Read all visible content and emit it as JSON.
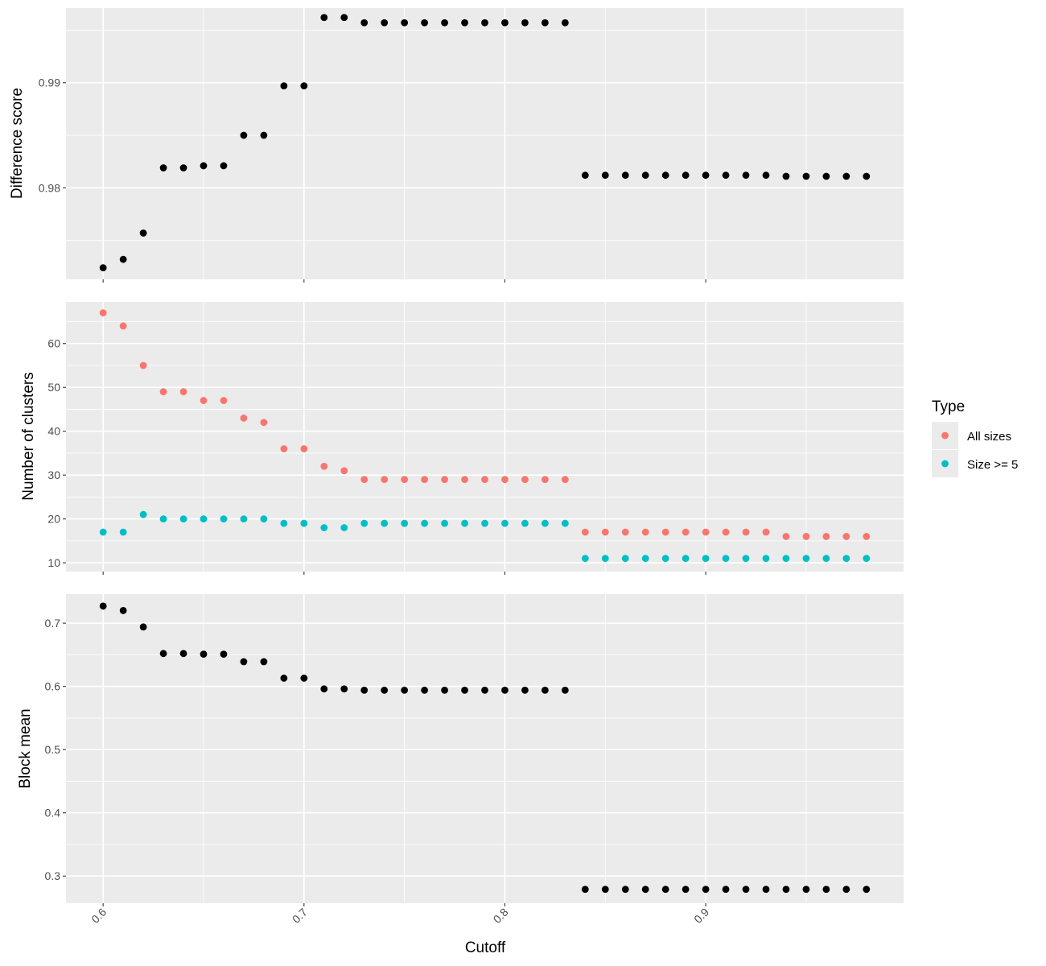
{
  "chart_data": [
    {
      "type": "scatter",
      "ylabel": "Difference score",
      "yticks": [
        0.98,
        0.99
      ],
      "ylim": [
        0.9713,
        0.9971
      ],
      "series": [
        {
          "color": "#000000",
          "x": [
            0.6,
            0.61,
            0.62,
            0.63,
            0.64,
            0.65,
            0.66,
            0.67,
            0.68,
            0.69,
            0.7,
            0.71,
            0.72,
            0.73,
            0.74,
            0.75,
            0.76,
            0.77,
            0.78,
            0.79,
            0.8,
            0.81,
            0.82,
            0.83,
            0.84,
            0.85,
            0.86,
            0.87,
            0.88,
            0.89,
            0.9,
            0.91,
            0.92,
            0.93,
            0.94,
            0.95,
            0.96,
            0.97,
            0.98
          ],
          "y": [
            0.9724,
            0.9732,
            0.9757,
            0.9819,
            0.9819,
            0.9821,
            0.9821,
            0.985,
            0.985,
            0.9897,
            0.9897,
            0.9962,
            0.9962,
            0.9957,
            0.9957,
            0.9957,
            0.9957,
            0.9957,
            0.9957,
            0.9957,
            0.9957,
            0.9957,
            0.9957,
            0.9957,
            0.9812,
            0.9812,
            0.9812,
            0.9812,
            0.9812,
            0.9812,
            0.9812,
            0.9812,
            0.9812,
            0.9812,
            0.9811,
            0.9811,
            0.9811,
            0.9811,
            0.9811
          ]
        }
      ]
    },
    {
      "type": "scatter",
      "ylabel": "Number of clusters",
      "yticks": [
        10,
        20,
        30,
        40,
        50,
        60
      ],
      "ylim": [
        8,
        69.5
      ],
      "legend": {
        "title": "Type",
        "placement": "right",
        "entries": [
          {
            "label": "All sizes",
            "color": "#F8766D"
          },
          {
            "label": "Size >= 5",
            "color": "#00BFC4"
          }
        ]
      },
      "series": [
        {
          "name": "All sizes",
          "color": "#F8766D",
          "x": [
            0.6,
            0.61,
            0.62,
            0.63,
            0.64,
            0.65,
            0.66,
            0.67,
            0.68,
            0.69,
            0.7,
            0.71,
            0.72,
            0.73,
            0.74,
            0.75,
            0.76,
            0.77,
            0.78,
            0.79,
            0.8,
            0.81,
            0.82,
            0.83,
            0.84,
            0.85,
            0.86,
            0.87,
            0.88,
            0.89,
            0.9,
            0.91,
            0.92,
            0.93,
            0.94,
            0.95,
            0.96,
            0.97,
            0.98
          ],
          "y": [
            67,
            64,
            55,
            49,
            49,
            47,
            47,
            43,
            42,
            36,
            36,
            32,
            31,
            29,
            29,
            29,
            29,
            29,
            29,
            29,
            29,
            29,
            29,
            29,
            17,
            17,
            17,
            17,
            17,
            17,
            17,
            17,
            17,
            17,
            16,
            16,
            16,
            16,
            16
          ]
        },
        {
          "name": "Size >= 5",
          "color": "#00BFC4",
          "x": [
            0.6,
            0.61,
            0.62,
            0.63,
            0.64,
            0.65,
            0.66,
            0.67,
            0.68,
            0.69,
            0.7,
            0.71,
            0.72,
            0.73,
            0.74,
            0.75,
            0.76,
            0.77,
            0.78,
            0.79,
            0.8,
            0.81,
            0.82,
            0.83,
            0.84,
            0.85,
            0.86,
            0.87,
            0.88,
            0.89,
            0.9,
            0.91,
            0.92,
            0.93,
            0.94,
            0.95,
            0.96,
            0.97,
            0.98
          ],
          "y": [
            17,
            17,
            21,
            20,
            20,
            20,
            20,
            20,
            20,
            19,
            19,
            18,
            18,
            19,
            19,
            19,
            19,
            19,
            19,
            19,
            19,
            19,
            19,
            19,
            11,
            11,
            11,
            11,
            11,
            11,
            11,
            11,
            11,
            11,
            11,
            11,
            11,
            11,
            11
          ]
        }
      ]
    },
    {
      "type": "scatter",
      "ylabel": "Block mean",
      "xlabel": "Cutoff",
      "xticks": [
        0.6,
        0.7,
        0.8,
        0.9
      ],
      "yticks": [
        0.3,
        0.4,
        0.5,
        0.6,
        0.7
      ],
      "ylim": [
        0.257,
        0.746
      ],
      "series": [
        {
          "color": "#000000",
          "x": [
            0.6,
            0.61,
            0.62,
            0.63,
            0.64,
            0.65,
            0.66,
            0.67,
            0.68,
            0.69,
            0.7,
            0.71,
            0.72,
            0.73,
            0.74,
            0.75,
            0.76,
            0.77,
            0.78,
            0.79,
            0.8,
            0.81,
            0.82,
            0.83,
            0.84,
            0.85,
            0.86,
            0.87,
            0.88,
            0.89,
            0.9,
            0.91,
            0.92,
            0.93,
            0.94,
            0.95,
            0.96,
            0.97,
            0.98
          ],
          "y": [
            0.727,
            0.72,
            0.694,
            0.652,
            0.652,
            0.651,
            0.651,
            0.639,
            0.639,
            0.613,
            0.613,
            0.596,
            0.596,
            0.594,
            0.594,
            0.594,
            0.594,
            0.594,
            0.594,
            0.594,
            0.594,
            0.594,
            0.594,
            0.594,
            0.279,
            0.279,
            0.279,
            0.279,
            0.279,
            0.279,
            0.279,
            0.279,
            0.279,
            0.279,
            0.279,
            0.279,
            0.279,
            0.279,
            0.279
          ]
        }
      ]
    }
  ],
  "xlim": [
    0.5815,
    0.9985
  ],
  "grid": true
}
